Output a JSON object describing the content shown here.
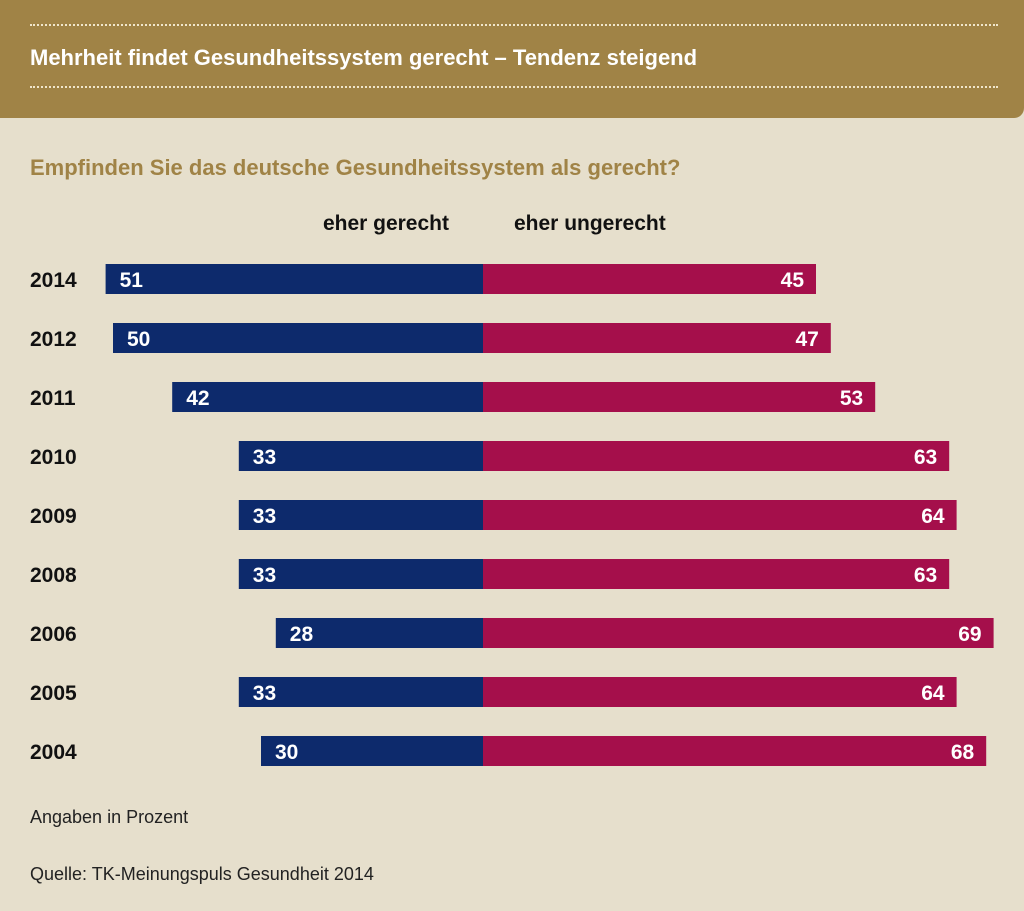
{
  "header": {
    "title": "Mehrheit findet Gesundheitssystem gerecht – Tendenz steigend"
  },
  "colors": {
    "banner": "#a08346",
    "background": "#e6dfcc",
    "gerecht": "#0d2a6c",
    "ungerecht": "#a50f4b"
  },
  "chart_data": {
    "type": "bar",
    "orientation": "diverging-horizontal",
    "title": "Empfinden Sie das deutsche Gesundheitssystem als gerecht?",
    "categories": [
      "2014",
      "2012",
      "2011",
      "2010",
      "2009",
      "2008",
      "2006",
      "2005",
      "2004"
    ],
    "series": [
      {
        "name": "eher gerecht",
        "values": [
          51,
          50,
          42,
          33,
          33,
          33,
          28,
          33,
          30
        ]
      },
      {
        "name": "eher ungerecht",
        "values": [
          45,
          47,
          53,
          63,
          64,
          63,
          69,
          64,
          68
        ]
      }
    ],
    "unit_note": "Angaben in Prozent"
  },
  "footer": {
    "unit": "Angaben in Prozent",
    "source": "Quelle: TK-Meinungspuls Gesundheit 2014"
  }
}
